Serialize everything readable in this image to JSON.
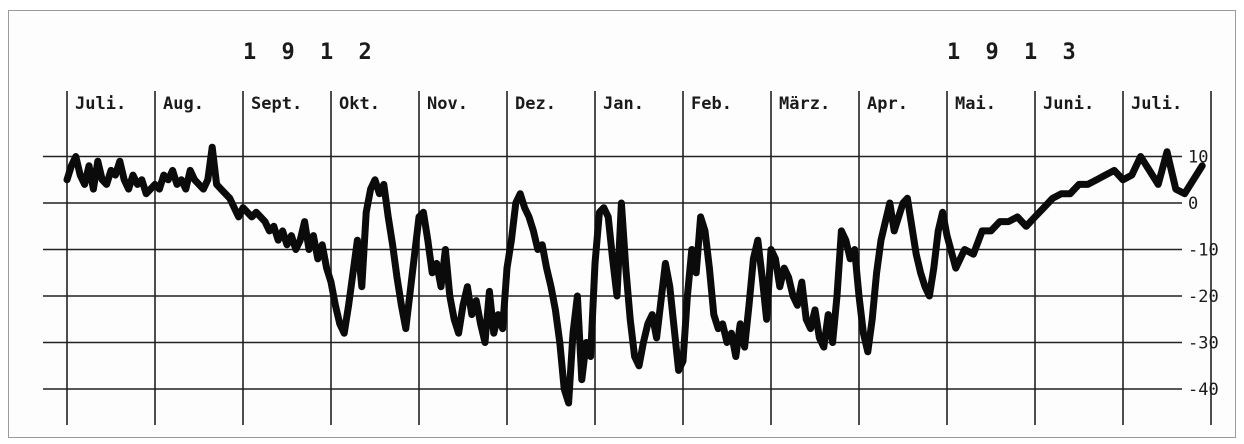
{
  "chart_data": {
    "type": "line",
    "years": [
      {
        "label": "1 9 1 2",
        "month_index": 2
      },
      {
        "label": "1 9 1 3",
        "month_index": 10
      }
    ],
    "months": [
      "Juli.",
      "Aug.",
      "Sept.",
      "Okt.",
      "Nov.",
      "Dez.",
      "Jan.",
      "Feb.",
      "März.",
      "Apr.",
      "Mai.",
      "Juni.",
      "Juli."
    ],
    "y_ticks": [
      10,
      0,
      -10,
      -20,
      -30,
      -40
    ],
    "y_tick_labels": [
      "10",
      "0",
      "-10",
      "-20",
      "-30",
      "-40"
    ],
    "ylim": [
      -40,
      10
    ],
    "grid": true,
    "series": [
      {
        "month_pos": [
          0.0,
          0.05,
          0.1,
          0.15,
          0.2,
          0.25,
          0.3,
          0.35,
          0.4,
          0.45,
          0.5,
          0.55,
          0.6,
          0.65,
          0.7,
          0.75,
          0.8,
          0.85,
          0.9,
          0.95,
          1.0,
          1.05,
          1.1,
          1.15,
          1.2,
          1.25,
          1.3,
          1.35,
          1.4,
          1.45,
          1.5,
          1.55,
          1.6,
          1.65,
          1.7,
          1.75,
          1.8,
          1.85,
          1.9,
          1.95,
          2.0,
          2.05,
          2.1,
          2.15,
          2.2,
          2.25,
          2.3,
          2.35,
          2.4,
          2.45,
          2.5,
          2.55,
          2.6,
          2.65,
          2.7,
          2.75,
          2.8,
          2.85,
          2.9,
          2.95,
          3.0,
          3.05,
          3.1,
          3.15,
          3.2,
          3.25,
          3.3,
          3.35,
          3.4,
          3.45,
          3.5,
          3.55,
          3.6,
          3.65,
          3.7,
          3.75,
          3.8,
          3.85,
          3.9,
          3.95,
          4.0,
          4.05,
          4.1,
          4.15,
          4.2,
          4.25,
          4.3,
          4.35,
          4.4,
          4.45,
          4.5,
          4.55,
          4.6,
          4.65,
          4.7,
          4.75,
          4.8,
          4.85,
          4.9,
          4.95,
          5.0,
          5.05,
          5.1,
          5.15,
          5.2,
          5.25,
          5.3,
          5.35,
          5.4,
          5.45,
          5.5,
          5.55,
          5.6,
          5.65,
          5.7,
          5.75,
          5.8,
          5.85,
          5.9,
          5.95,
          6.0,
          6.05,
          6.1,
          6.15,
          6.2,
          6.25,
          6.3,
          6.35,
          6.4,
          6.45,
          6.5,
          6.55,
          6.6,
          6.65,
          6.7,
          6.75,
          6.8,
          6.85,
          6.9,
          6.95,
          7.0,
          7.05,
          7.1,
          7.15,
          7.2,
          7.25,
          7.3,
          7.35,
          7.4,
          7.45,
          7.5,
          7.55,
          7.6,
          7.65,
          7.7,
          7.75,
          7.8,
          7.85,
          7.9,
          7.95,
          8.0,
          8.05,
          8.1,
          8.15,
          8.2,
          8.25,
          8.3,
          8.35,
          8.4,
          8.45,
          8.5,
          8.55,
          8.6,
          8.65,
          8.7,
          8.75,
          8.8,
          8.85,
          8.9,
          8.95,
          9.0,
          9.05,
          9.1,
          9.15,
          9.2,
          9.25,
          9.3,
          9.35,
          9.4,
          9.45,
          9.5,
          9.55,
          9.6,
          9.65,
          9.7,
          9.75,
          9.8,
          9.85,
          9.9,
          9.95,
          10.0,
          10.1,
          10.2,
          10.3,
          10.4,
          10.5,
          10.6,
          10.7,
          10.8,
          10.9,
          11.0,
          11.1,
          11.2,
          11.3,
          11.4,
          11.5,
          11.6,
          11.7,
          11.8,
          11.9,
          12.0,
          12.1,
          12.2,
          12.3,
          12.4,
          12.5,
          12.6,
          12.7,
          12.8,
          12.9
        ],
        "values": [
          5,
          8,
          10,
          6,
          4,
          8,
          3,
          9,
          5,
          4,
          7,
          6,
          9,
          5,
          3,
          6,
          4,
          5,
          2,
          3,
          4,
          3,
          6,
          5,
          7,
          4,
          5,
          3,
          7,
          5,
          4,
          3,
          5,
          12,
          4,
          3,
          2,
          1,
          -1,
          -3,
          -1,
          -2,
          -3,
          -2,
          -3,
          -4,
          -6,
          -5,
          -8,
          -6,
          -9,
          -7,
          -10,
          -8,
          -4,
          -10,
          -7,
          -12,
          -9,
          -14,
          -17,
          -22,
          -26,
          -28,
          -22,
          -15,
          -8,
          -18,
          -2,
          3,
          5,
          2,
          4,
          -3,
          -9,
          -16,
          -22,
          -27,
          -19,
          -11,
          -3,
          -2,
          -8,
          -15,
          -13,
          -18,
          -10,
          -20,
          -25,
          -28,
          -22,
          -18,
          -24,
          -21,
          -26,
          -30,
          -19,
          -28,
          -24,
          -27,
          -14,
          -8,
          0,
          2,
          -1,
          -3,
          -6,
          -10,
          -9,
          -14,
          -18,
          -23,
          -30,
          -40,
          -43,
          -28,
          -20,
          -38,
          -30,
          -33,
          -13,
          -2,
          -1,
          -3,
          -12,
          -20,
          0,
          -14,
          -25,
          -33,
          -35,
          -30,
          -26,
          -24,
          -29,
          -21,
          -13,
          -18,
          -27,
          -36,
          -34,
          -20,
          -10,
          -15,
          -3,
          -6,
          -14,
          -24,
          -27,
          -26,
          -30,
          -28,
          -33,
          -26,
          -31,
          -22,
          -12,
          -8,
          -16,
          -25,
          -10,
          -12,
          -18,
          -14,
          -16,
          -20,
          -22,
          -17,
          -25,
          -27,
          -23,
          -29,
          -31,
          -24,
          -30,
          -20,
          -6,
          -8,
          -12,
          -10,
          -20,
          -28,
          -32,
          -25,
          -15,
          -8,
          -4,
          0,
          -6,
          -3,
          0,
          1,
          -5,
          -11,
          -15,
          -18,
          -20,
          -14,
          -6,
          -2,
          -7,
          -14,
          -10,
          -11,
          -6,
          -6,
          -4,
          -4,
          -3,
          -5,
          -3,
          -1,
          1,
          2,
          2,
          4,
          4,
          5,
          6,
          7,
          5,
          6,
          10,
          7,
          4,
          11,
          3,
          2,
          5,
          8
        ]
      }
    ]
  }
}
